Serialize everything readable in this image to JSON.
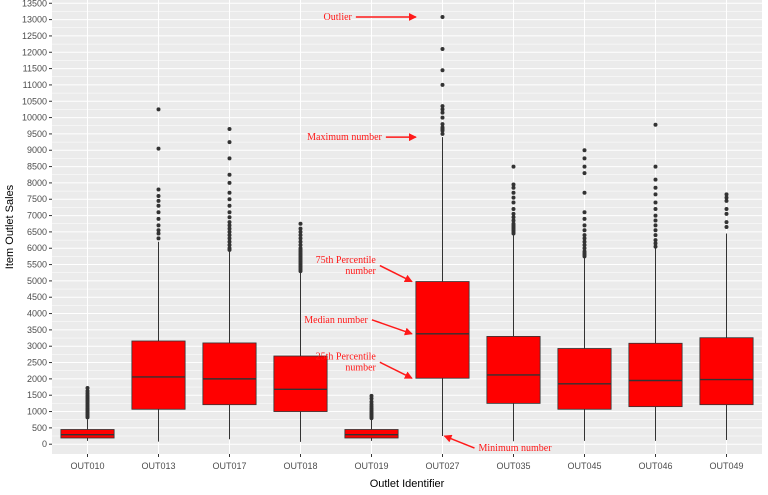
{
  "chart_data": {
    "type": "box",
    "xlabel": "Outlet Identifier",
    "ylabel": "Item Outlet Sales",
    "ylim": [
      -300,
      13600
    ],
    "yticks": [
      0,
      500,
      1000,
      1500,
      2000,
      2500,
      3000,
      3500,
      4000,
      4500,
      5000,
      5500,
      6000,
      6500,
      7000,
      7500,
      8000,
      8500,
      9000,
      9500,
      10000,
      10500,
      11000,
      11500,
      12000,
      12500,
      13000,
      13500
    ],
    "grid": true,
    "colors": {
      "box_fill": "#ff0000",
      "annotation": "#ff1a1a",
      "panel": "#ebebeb",
      "grid": "#ffffff",
      "outlier": "#333333"
    },
    "categories": [
      "OUT010",
      "OUT013",
      "OUT017",
      "OUT018",
      "OUT019",
      "OUT027",
      "OUT035",
      "OUT045",
      "OUT046",
      "OUT049"
    ],
    "boxes": [
      {
        "category": "OUT010",
        "min": 100,
        "q1": 190,
        "median": 290,
        "q3": 450,
        "max": 760,
        "outliers": [
          820,
          860,
          900,
          940,
          980,
          1020,
          1060,
          1100,
          1150,
          1200,
          1250,
          1300,
          1350,
          1400,
          1450,
          1500,
          1560,
          1630,
          1720
        ]
      },
      {
        "category": "OUT013",
        "min": 80,
        "q1": 1070,
        "median": 2060,
        "q3": 3160,
        "max": 6200,
        "outliers": [
          6300,
          6450,
          6550,
          6700,
          6900,
          7100,
          7300,
          7450,
          7600,
          7800,
          9050,
          10250
        ]
      },
      {
        "category": "OUT017",
        "min": 150,
        "q1": 1210,
        "median": 2000,
        "q3": 3100,
        "max": 5900,
        "outliers": [
          5950,
          6000,
          6100,
          6200,
          6300,
          6400,
          6500,
          6600,
          6700,
          6800,
          6950,
          7100,
          7300,
          7500,
          7700,
          8000,
          8250,
          8750,
          9250,
          9650
        ]
      },
      {
        "category": "OUT018",
        "min": 70,
        "q1": 1000,
        "median": 1680,
        "q3": 2700,
        "max": 5250,
        "outliers": [
          5300,
          5350,
          5400,
          5450,
          5500,
          5550,
          5600,
          5650,
          5700,
          5750,
          5800,
          5850,
          5900,
          5950,
          6000,
          6100,
          6200,
          6300,
          6400,
          6500,
          6600,
          6750
        ]
      },
      {
        "category": "OUT019",
        "min": 100,
        "q1": 190,
        "median": 290,
        "q3": 450,
        "max": 760,
        "outliers": [
          800,
          840,
          880,
          920,
          960,
          1000,
          1050,
          1100,
          1160,
          1220,
          1300,
          1400,
          1480
        ]
      },
      {
        "category": "OUT027",
        "min": 250,
        "q1": 2020,
        "median": 3380,
        "q3": 4980,
        "max": 9400,
        "outliers": [
          9500,
          9600,
          9650,
          9700,
          9800,
          10000,
          10150,
          10250,
          10350,
          11000,
          11450,
          12100,
          13080
        ]
      },
      {
        "category": "OUT035",
        "min": 90,
        "q1": 1250,
        "median": 2120,
        "q3": 3300,
        "max": 6400,
        "outliers": [
          6450,
          6500,
          6550,
          6600,
          6650,
          6700,
          6750,
          6850,
          6950,
          7050,
          7200,
          7400,
          7550,
          7700,
          7850,
          7950,
          8500
        ]
      },
      {
        "category": "OUT045",
        "min": 100,
        "q1": 1070,
        "median": 1850,
        "q3": 2930,
        "max": 5700,
        "outliers": [
          5750,
          5800,
          5850,
          5900,
          6000,
          6100,
          6200,
          6300,
          6400,
          6550,
          6700,
          6900,
          7100,
          7700,
          8300,
          8500,
          8750,
          9000
        ]
      },
      {
        "category": "OUT046",
        "min": 100,
        "q1": 1150,
        "median": 1950,
        "q3": 3090,
        "max": 6000,
        "outliers": [
          6050,
          6150,
          6250,
          6400,
          6550,
          6700,
          6850,
          7000,
          7200,
          7400,
          7650,
          7850,
          8100,
          8500,
          9780
        ]
      },
      {
        "category": "OUT049",
        "min": 130,
        "q1": 1210,
        "median": 1980,
        "q3": 3260,
        "max": 6450,
        "outliers": [
          6650,
          6800,
          7050,
          7200,
          7450,
          7550,
          7650
        ]
      }
    ],
    "annotations": [
      {
        "lines": [
          "Outlier"
        ],
        "target": {
          "category": "OUT027",
          "y": 13080
        }
      },
      {
        "lines": [
          "Maximum number"
        ],
        "target": {
          "category": "OUT027",
          "y": 9400
        }
      },
      {
        "lines": [
          "75th Percentile",
          "number"
        ],
        "target": {
          "category": "OUT027",
          "y": 4980
        }
      },
      {
        "lines": [
          "Median number"
        ],
        "target": {
          "category": "OUT027",
          "y": 3380
        }
      },
      {
        "lines": [
          "25th Percentile",
          "number"
        ],
        "target": {
          "category": "OUT027",
          "y": 2020
        }
      },
      {
        "lines": [
          "Minimum number"
        ],
        "target": {
          "category": "OUT027",
          "y": 250
        }
      }
    ]
  }
}
